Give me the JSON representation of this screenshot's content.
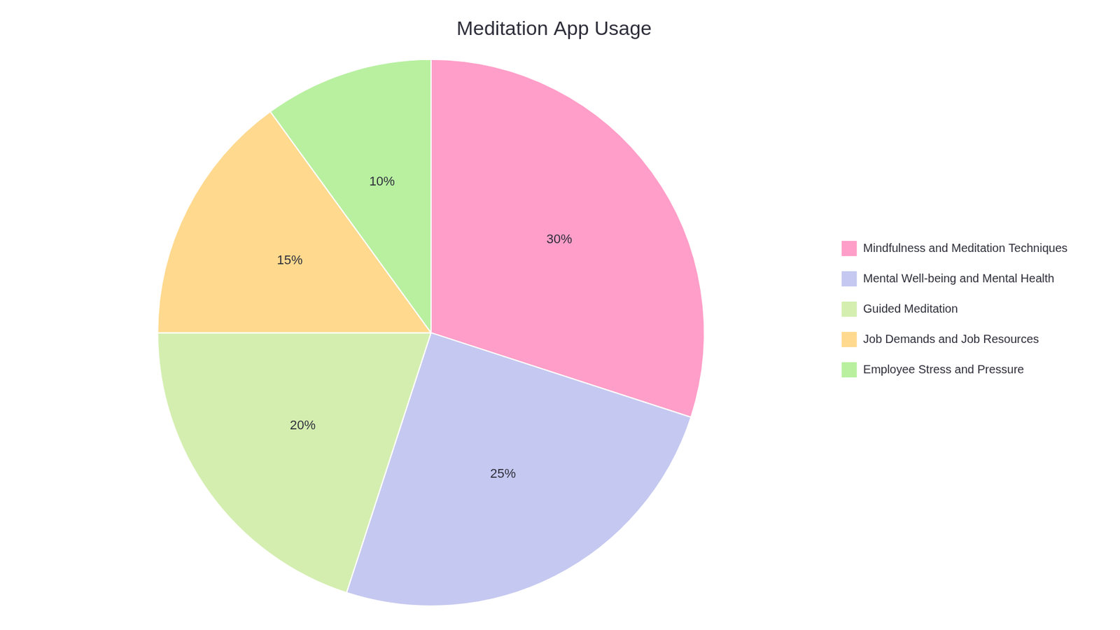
{
  "chart_data": {
    "type": "pie",
    "title": "Meditation App Usage",
    "categories": [
      "Mindfulness and Meditation Techniques",
      "Mental Well-being and Mental Health",
      "Guided Meditation",
      "Job Demands and Job Resources",
      "Employee Stress and Pressure"
    ],
    "values": [
      30,
      25,
      20,
      15,
      10
    ],
    "value_labels": [
      "30%",
      "25%",
      "20%",
      "15%",
      "10%"
    ],
    "colors": [
      "#FF9EC8",
      "#C5C8F0",
      "#D4EEB0",
      "#FFD98E",
      "#B8F0A0"
    ],
    "data_labels": true,
    "legend": "right"
  }
}
